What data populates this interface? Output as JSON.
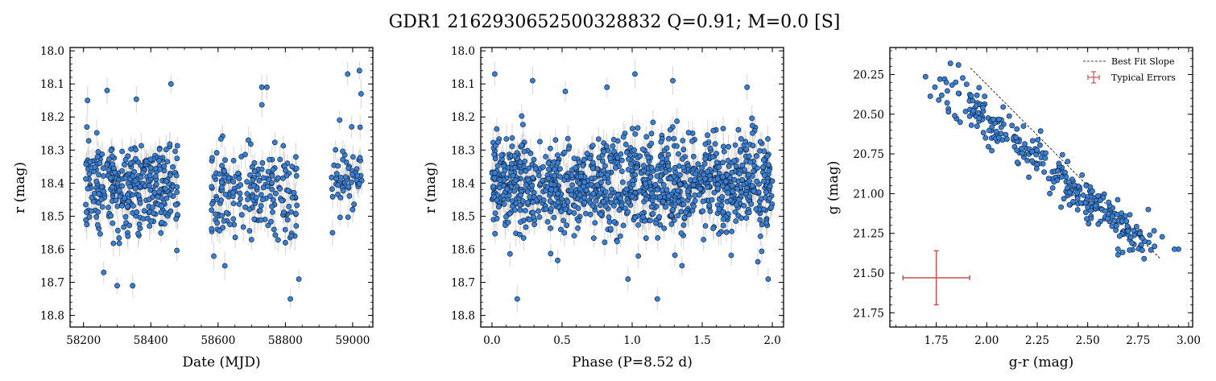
{
  "figure": {
    "title": "GDR1 2162930652500328832  Q=0.91; M=0.0 [S]"
  },
  "colors": {
    "point_fill": "#3a7fd0",
    "point_edge": "#0a1a33",
    "errorbar": "#cccccc",
    "typical_error": "#d05050",
    "fit_line": "#000000"
  },
  "chart_data": [
    {
      "type": "scatter",
      "xlabel": "Date (MJD)",
      "ylabel": "r (mag)",
      "xlim": [
        58160,
        59060
      ],
      "ylim": [
        18.835,
        17.99
      ],
      "xticks": [
        58200,
        58400,
        58600,
        58800,
        59000
      ],
      "yticks": [
        18.0,
        18.1,
        18.2,
        18.3,
        18.4,
        18.5,
        18.6,
        18.7,
        18.8
      ],
      "x_tick_decimals": 0,
      "y_tick_decimals": 1,
      "x_minor_step": 50,
      "y_minor_step": 0.02,
      "errorbars": true,
      "clusters": [
        {
          "x_range": [
            58205,
            58480
          ],
          "y_center": 18.41,
          "y_spread": 0.11,
          "count": 330
        },
        {
          "x_range": [
            58580,
            58840
          ],
          "y_center": 18.42,
          "y_spread": 0.12,
          "count": 200
        },
        {
          "x_range": [
            58935,
            59030
          ],
          "y_center": 18.38,
          "y_spread": 0.1,
          "count": 55
        }
      ],
      "points": [
        [
          58210,
          18.23
        ],
        [
          58212,
          18.15
        ],
        [
          58260,
          18.67
        ],
        [
          58300,
          18.71
        ],
        [
          58346,
          18.71
        ],
        [
          58460,
          18.1
        ],
        [
          58620,
          18.65
        ],
        [
          58730,
          18.11
        ],
        [
          58745,
          18.11
        ],
        [
          58815,
          18.75
        ],
        [
          58840,
          18.69
        ],
        [
          58820,
          18.35
        ],
        [
          58985,
          18.07
        ],
        [
          59020,
          18.06
        ],
        [
          59025,
          18.13
        ],
        [
          58940,
          18.55
        ],
        [
          59000,
          18.48
        ],
        [
          58270,
          18.12
        ],
        [
          58690,
          18.27
        ],
        [
          58800,
          18.58
        ]
      ]
    },
    {
      "type": "scatter",
      "xlabel": "Phase (P=8.52 d)",
      "ylabel": "r (mag)",
      "xlim": [
        -0.08,
        2.08
      ],
      "ylim": [
        18.835,
        17.99
      ],
      "xticks": [
        0.0,
        0.5,
        1.0,
        1.5,
        2.0
      ],
      "yticks": [
        18.0,
        18.1,
        18.2,
        18.3,
        18.4,
        18.5,
        18.6,
        18.7,
        18.8
      ],
      "x_tick_decimals": 1,
      "y_tick_decimals": 1,
      "x_minor_step": 0.1,
      "y_minor_step": 0.02,
      "errorbars": true,
      "clusters": [
        {
          "x_range": [
            0.0,
            2.0
          ],
          "y_center": 18.41,
          "y_spread": 0.12,
          "count": 1150
        }
      ],
      "points": [
        [
          0.02,
          18.07
        ],
        [
          1.02,
          18.07
        ],
        [
          0.18,
          18.75
        ],
        [
          1.18,
          18.75
        ],
        [
          1.29,
          18.09
        ],
        [
          0.29,
          18.09
        ],
        [
          0.82,
          18.11
        ],
        [
          1.82,
          18.11
        ],
        [
          1.97,
          18.69
        ],
        [
          0.97,
          18.69
        ]
      ]
    },
    {
      "type": "scatter",
      "xlabel": "g-r (mag)",
      "ylabel": "g (mag)",
      "xlim": [
        1.52,
        3.02
      ],
      "ylim": [
        21.84,
        20.08
      ],
      "xticks": [
        1.75,
        2.0,
        2.25,
        2.5,
        2.75,
        3.0
      ],
      "yticks": [
        20.25,
        20.5,
        20.75,
        21.0,
        21.25,
        21.5,
        21.75
      ],
      "x_tick_decimals": 2,
      "y_tick_decimals": 2,
      "x_minor_step": 0.05,
      "y_minor_step": 0.05,
      "errorbars": false,
      "trend": {
        "x0": 1.8,
        "y0": 20.32,
        "x1": 2.78,
        "y1": 21.32,
        "perp_spread": 0.08,
        "count": 300
      },
      "points": [
        [
          1.82,
          20.18
        ],
        [
          1.86,
          20.19
        ],
        [
          1.8,
          20.3
        ],
        [
          2.95,
          21.35
        ],
        [
          2.93,
          21.35
        ],
        [
          2.78,
          21.41
        ],
        [
          2.77,
          21.28
        ],
        [
          2.65,
          21.35
        ],
        [
          2.8,
          21.1
        ],
        [
          1.98,
          20.46
        ]
      ],
      "fit_line": {
        "x": [
          1.92,
          2.86
        ],
        "y": [
          20.21,
          21.41
        ]
      },
      "typical_error": {
        "x": 1.75,
        "y": 21.53,
        "xerr": 0.165,
        "yerr": 0.17
      },
      "legend": {
        "placement": "upper-right",
        "entries": [
          "Best Fit Slope",
          "Typical Errors"
        ]
      }
    }
  ]
}
